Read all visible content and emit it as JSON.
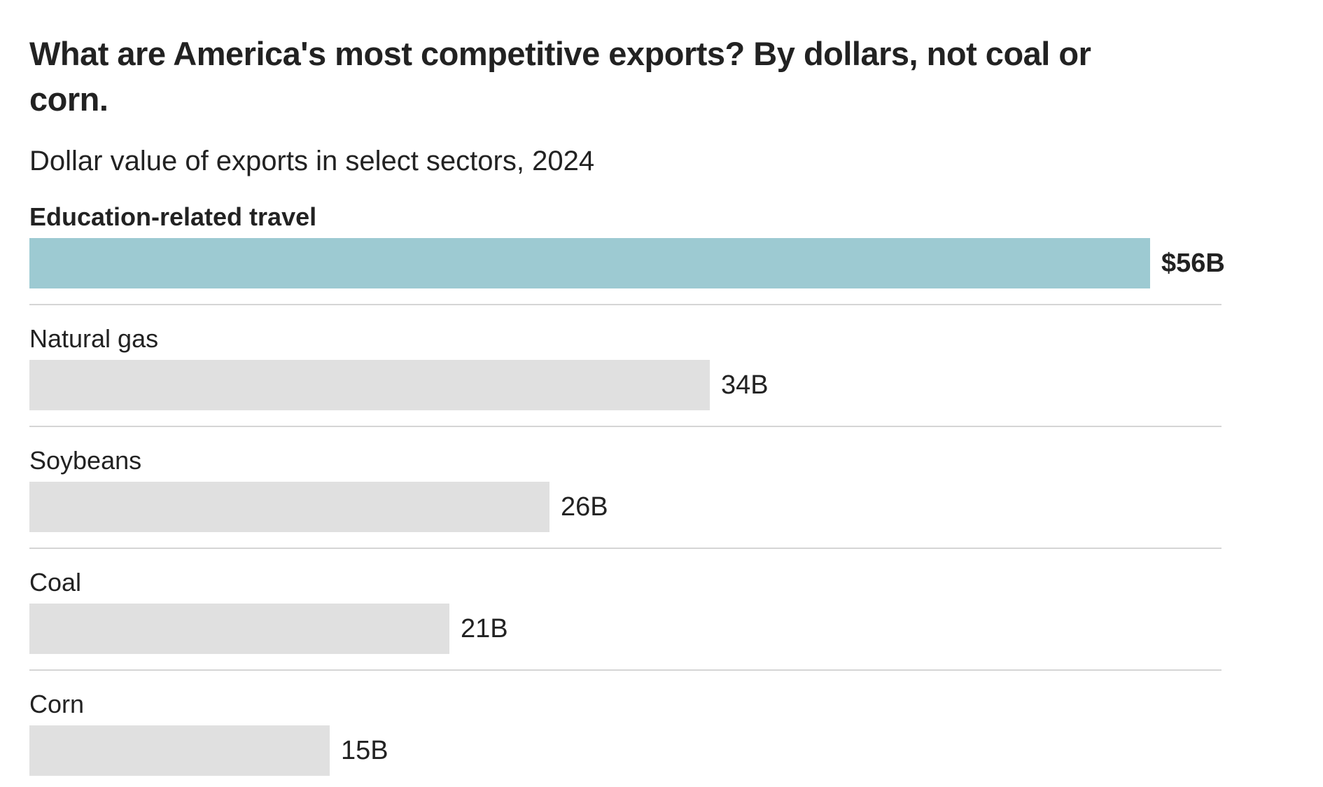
{
  "chart_data": {
    "type": "bar",
    "orientation": "horizontal",
    "title": "What are America's most competitive exports? By dollars, not coal or\ncorn.",
    "subtitle": "Dollar value of exports in select sectors, 2024",
    "categories": [
      "Education-related travel",
      "Natural gas",
      "Soybeans",
      "Coal",
      "Corn"
    ],
    "values": [
      56,
      34,
      26,
      21,
      15
    ],
    "value_labels": [
      "$56B",
      "34B",
      "26B",
      "21B",
      "15B"
    ],
    "xlim": [
      0,
      56
    ],
    "highlighted_index": 0,
    "grid": "off",
    "legend": "none",
    "colors": {
      "background": "#FFFFFF",
      "highlight_bar": "#9DCAD2",
      "default_bar": "#E0E0E0",
      "text": "#222222",
      "divider": "#D5D5D5"
    }
  }
}
